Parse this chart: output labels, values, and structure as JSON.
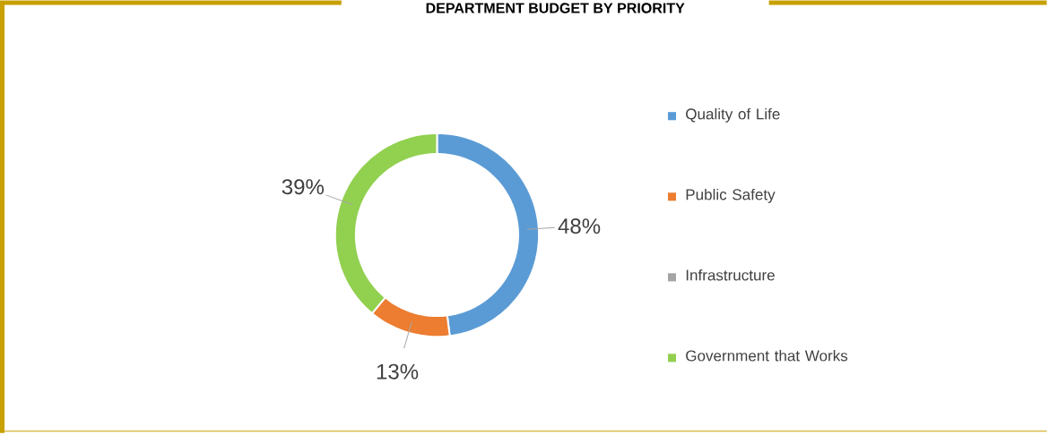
{
  "chart_data": {
    "type": "donut",
    "title": "DEPARTMENT BUDGET BY PRIORITY",
    "categories": [
      "Quality of Life",
      "Public Safety",
      "Infrastructure",
      "Government that Works"
    ],
    "values": [
      48,
      13,
      0,
      39
    ],
    "colors": [
      "#5b9bd5",
      "#ed7d31",
      "#a5a5a5",
      "#92d050"
    ],
    "value_labels": [
      "48%",
      "13%",
      null,
      "39%"
    ],
    "legend": "right"
  }
}
